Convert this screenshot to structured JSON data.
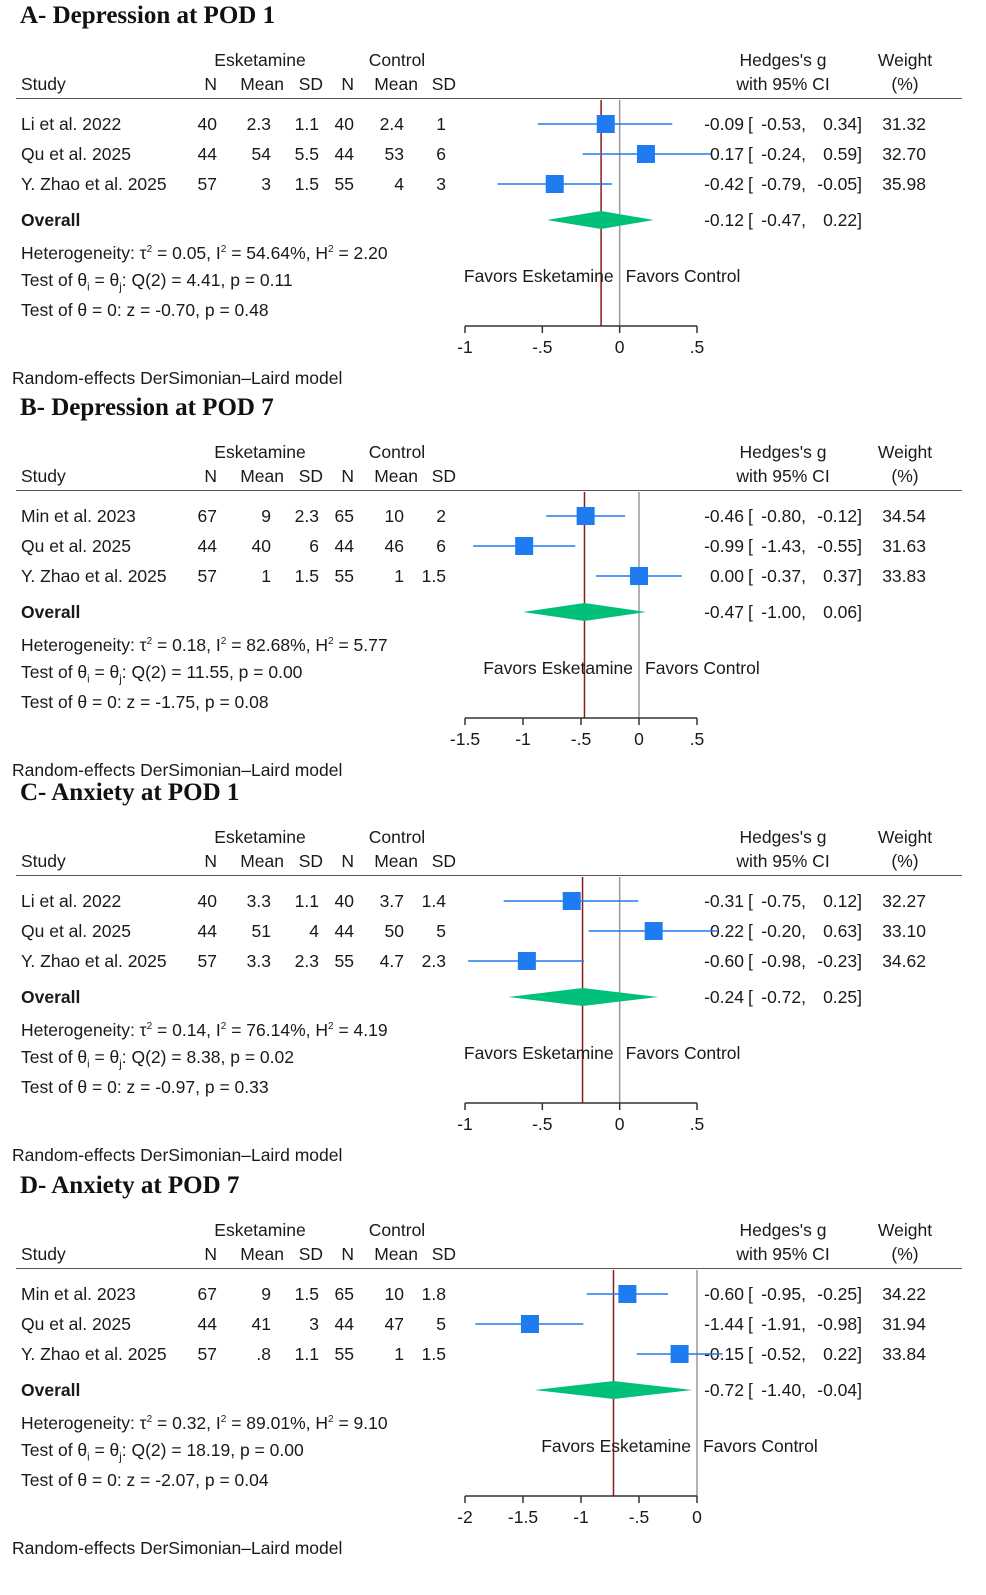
{
  "model_note": "Random-effects DerSimonian–Laird model",
  "headers": {
    "esketamine": "Esketamine",
    "control": "Control",
    "study": "Study",
    "n": "N",
    "mean": "Mean",
    "sd": "SD",
    "effect_line1": "Hedges's g",
    "effect_line2": "with 95% CI",
    "weight_line1": "Weight",
    "weight_line2": "(%)",
    "overall": "Overall",
    "favors_left": "Favors Esketamine",
    "favors_right": "Favors Control"
  },
  "colors": {
    "square": "#1f7bf0",
    "ci_line": "#1f7bf0",
    "diamond": "#00c07a",
    "overall_line": "#8b1a1a",
    "null_line": "#999999",
    "axis": "#333333"
  },
  "chart_data": [
    {
      "type": "forest",
      "title": "A- Depression at POD 1",
      "xlim": [
        -1,
        0.5
      ],
      "ticks": [
        -1,
        -0.5,
        0,
        0.5
      ],
      "tick_labels": [
        "-1",
        "-.5",
        "0",
        ".5"
      ],
      "studies": [
        {
          "name": "Li et al. 2022",
          "e_n": "40",
          "e_mean": "2.3",
          "e_sd": "1.1",
          "c_n": "40",
          "c_mean": "2.4",
          "c_sd": "1",
          "g": -0.09,
          "lo": -0.53,
          "hi": 0.34,
          "g_text": "-0.09",
          "lo_text": "-0.53,",
          "hi_text": "0.34]",
          "weight": "31.32"
        },
        {
          "name": "Qu et al. 2025",
          "e_n": "44",
          "e_mean": "54",
          "e_sd": "5.5",
          "c_n": "44",
          "c_mean": "53",
          "c_sd": "6",
          "g": 0.17,
          "lo": -0.24,
          "hi": 0.59,
          "g_text": "0.17",
          "lo_text": "-0.24,",
          "hi_text": "0.59]",
          "weight": "32.70"
        },
        {
          "name": "Y. Zhao et al. 2025",
          "e_n": "57",
          "e_mean": "3",
          "e_sd": "1.5",
          "c_n": "55",
          "c_mean": "4",
          "c_sd": "3",
          "g": -0.42,
          "lo": -0.79,
          "hi": -0.05,
          "g_text": "-0.42",
          "lo_text": "-0.79,",
          "hi_text": "-0.05]",
          "weight": "35.98"
        }
      ],
      "overall": {
        "g": -0.12,
        "lo": -0.47,
        "hi": 0.22,
        "g_text": "-0.12",
        "lo_text": "-0.47,",
        "hi_text": "0.22]"
      },
      "heterogeneity": {
        "tau2": "0.05",
        "i2": "54.64%",
        "h2": "2.20"
      },
      "test_homogeneity": {
        "df": "2",
        "q": "4.41",
        "p": "0.11"
      },
      "test_effect": {
        "z": "-0.70",
        "p": "0.48"
      }
    },
    {
      "type": "forest",
      "title": "B- Depression at POD 7",
      "xlim": [
        -1.5,
        0.5
      ],
      "ticks": [
        -1.5,
        -1,
        -0.5,
        0,
        0.5
      ],
      "tick_labels": [
        "-1.5",
        "-1",
        "-.5",
        "0",
        ".5"
      ],
      "studies": [
        {
          "name": "Min et al. 2023",
          "e_n": "67",
          "e_mean": "9",
          "e_sd": "2.3",
          "c_n": "65",
          "c_mean": "10",
          "c_sd": "2",
          "g": -0.46,
          "lo": -0.8,
          "hi": -0.12,
          "g_text": "-0.46",
          "lo_text": "-0.80,",
          "hi_text": "-0.12]",
          "weight": "34.54"
        },
        {
          "name": "Qu et al. 2025",
          "e_n": "44",
          "e_mean": "40",
          "e_sd": "6",
          "c_n": "44",
          "c_mean": "46",
          "c_sd": "6",
          "g": -0.99,
          "lo": -1.43,
          "hi": -0.55,
          "g_text": "-0.99",
          "lo_text": "-1.43,",
          "hi_text": "-0.55]",
          "weight": "31.63"
        },
        {
          "name": "Y. Zhao et al. 2025",
          "e_n": "57",
          "e_mean": "1",
          "e_sd": "1.5",
          "c_n": "55",
          "c_mean": "1",
          "c_sd": "1.5",
          "g": 0.0,
          "lo": -0.37,
          "hi": 0.37,
          "g_text": "0.00",
          "lo_text": "-0.37,",
          "hi_text": "0.37]",
          "weight": "33.83"
        }
      ],
      "overall": {
        "g": -0.47,
        "lo": -1.0,
        "hi": 0.06,
        "g_text": "-0.47",
        "lo_text": "-1.00,",
        "hi_text": "0.06]"
      },
      "heterogeneity": {
        "tau2": "0.18",
        "i2": "82.68%",
        "h2": "5.77"
      },
      "test_homogeneity": {
        "df": "2",
        "q": "11.55",
        "p": "0.00"
      },
      "test_effect": {
        "z": "-1.75",
        "p": "0.08"
      }
    },
    {
      "type": "forest",
      "title": "C- Anxiety at POD 1",
      "xlim": [
        -1,
        0.5
      ],
      "ticks": [
        -1,
        -0.5,
        0,
        0.5
      ],
      "tick_labels": [
        "-1",
        "-.5",
        "0",
        ".5"
      ],
      "studies": [
        {
          "name": "Li et al. 2022",
          "e_n": "40",
          "e_mean": "3.3",
          "e_sd": "1.1",
          "c_n": "40",
          "c_mean": "3.7",
          "c_sd": "1.4",
          "g": -0.31,
          "lo": -0.75,
          "hi": 0.12,
          "g_text": "-0.31",
          "lo_text": "-0.75,",
          "hi_text": "0.12]",
          "weight": "32.27"
        },
        {
          "name": "Qu et al. 2025",
          "e_n": "44",
          "e_mean": "51",
          "e_sd": "4",
          "c_n": "44",
          "c_mean": "50",
          "c_sd": "5",
          "g": 0.22,
          "lo": -0.2,
          "hi": 0.63,
          "g_text": "0.22",
          "lo_text": "-0.20,",
          "hi_text": "0.63]",
          "weight": "33.10"
        },
        {
          "name": "Y. Zhao et al. 2025",
          "e_n": "57",
          "e_mean": "3.3",
          "e_sd": "2.3",
          "c_n": "55",
          "c_mean": "4.7",
          "c_sd": "2.3",
          "g": -0.6,
          "lo": -0.98,
          "hi": -0.23,
          "g_text": "-0.60",
          "lo_text": "-0.98,",
          "hi_text": "-0.23]",
          "weight": "34.62"
        }
      ],
      "overall": {
        "g": -0.24,
        "lo": -0.72,
        "hi": 0.25,
        "g_text": "-0.24",
        "lo_text": "-0.72,",
        "hi_text": "0.25]"
      },
      "heterogeneity": {
        "tau2": "0.14",
        "i2": "76.14%",
        "h2": "4.19"
      },
      "test_homogeneity": {
        "df": "2",
        "q": "8.38",
        "p": "0.02"
      },
      "test_effect": {
        "z": "-0.97",
        "p": "0.33"
      }
    },
    {
      "type": "forest",
      "title": "D- Anxiety at POD 7",
      "xlim": [
        -2,
        0
      ],
      "ticks": [
        -2,
        -1.5,
        -1,
        -0.5,
        0
      ],
      "tick_labels": [
        "-2",
        "-1.5",
        "-1",
        "-.5",
        "0"
      ],
      "studies": [
        {
          "name": "Min et al. 2023",
          "e_n": "67",
          "e_mean": "9",
          "e_sd": "1.5",
          "c_n": "65",
          "c_mean": "10",
          "c_sd": "1.8",
          "g": -0.6,
          "lo": -0.95,
          "hi": -0.25,
          "g_text": "-0.60",
          "lo_text": "-0.95,",
          "hi_text": "-0.25]",
          "weight": "34.22"
        },
        {
          "name": "Qu et al. 2025",
          "e_n": "44",
          "e_mean": "41",
          "e_sd": "3",
          "c_n": "44",
          "c_mean": "47",
          "c_sd": "5",
          "g": -1.44,
          "lo": -1.91,
          "hi": -0.98,
          "g_text": "-1.44",
          "lo_text": "-1.91,",
          "hi_text": "-0.98]",
          "weight": "31.94"
        },
        {
          "name": "Y. Zhao et al. 2025",
          "e_n": "57",
          "e_mean": ".8",
          "e_sd": "1.1",
          "c_n": "55",
          "c_mean": "1",
          "c_sd": "1.5",
          "g": -0.15,
          "lo": -0.52,
          "hi": 0.22,
          "g_text": "-0.15",
          "lo_text": "-0.52,",
          "hi_text": "0.22]",
          "weight": "33.84"
        }
      ],
      "overall": {
        "g": -0.72,
        "lo": -1.4,
        "hi": -0.04,
        "g_text": "-0.72",
        "lo_text": "-1.40,",
        "hi_text": "-0.04]"
      },
      "heterogeneity": {
        "tau2": "0.32",
        "i2": "89.01%",
        "h2": "9.10"
      },
      "test_homogeneity": {
        "df": "2",
        "q": "18.19",
        "p": "0.00"
      },
      "test_effect": {
        "z": "-2.07",
        "p": "0.04"
      }
    }
  ]
}
